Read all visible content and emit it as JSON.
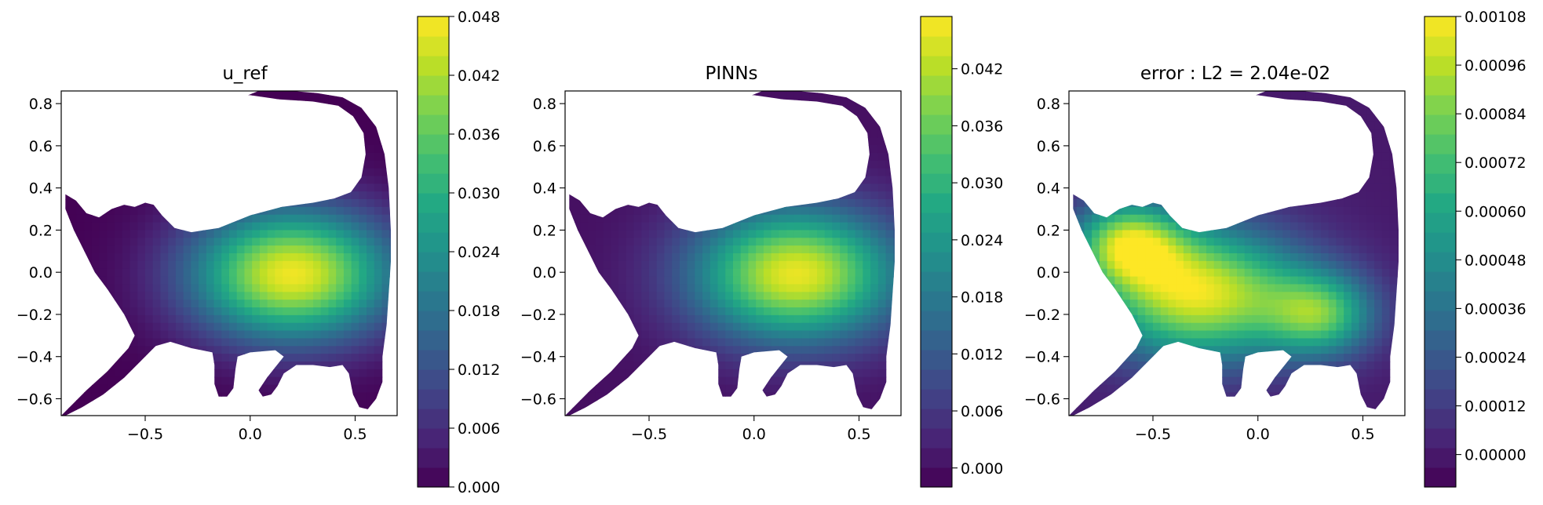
{
  "chart_data": [
    {
      "type": "heatmap",
      "title": "u_ref",
      "xlabel": "",
      "ylabel": "",
      "xlim": [
        -0.9,
        0.7
      ],
      "ylim": [
        -0.68,
        0.86
      ],
      "xticks": [
        "−0.5",
        "0.0",
        "0.5"
      ],
      "xtick_values": [
        -0.5,
        0.0,
        0.5
      ],
      "yticks": [
        "0.8",
        "0.6",
        "0.4",
        "0.2",
        "0.0",
        "−0.2",
        "−0.4",
        "−0.6"
      ],
      "ytick_values": [
        0.8,
        0.6,
        0.4,
        0.2,
        0.0,
        -0.2,
        -0.4,
        -0.6
      ],
      "colormap": "viridis",
      "colorbar": {
        "min": 0.0,
        "max": 0.048,
        "ticks": [
          "0.000",
          "0.006",
          "0.012",
          "0.018",
          "0.024",
          "0.030",
          "0.036",
          "0.042",
          "0.048"
        ],
        "tick_values": [
          0.0,
          0.006,
          0.012,
          0.018,
          0.024,
          0.03,
          0.036,
          0.042,
          0.048
        ]
      },
      "field": {
        "peaks": [
          {
            "x": 0.2,
            "y": -0.01,
            "value": 0.047
          }
        ],
        "domain": "cat-shaped region"
      },
      "grid": false
    },
    {
      "type": "heatmap",
      "title": "PINNs",
      "xlabel": "",
      "ylabel": "",
      "xlim": [
        -0.9,
        0.7
      ],
      "ylim": [
        -0.68,
        0.86
      ],
      "xticks": [
        "−0.5",
        "0.0",
        "0.5"
      ],
      "xtick_values": [
        -0.5,
        0.0,
        0.5
      ],
      "yticks": [
        "0.8",
        "0.6",
        "0.4",
        "0.2",
        "0.0",
        "−0.2",
        "−0.4",
        "−0.6"
      ],
      "ytick_values": [
        0.8,
        0.6,
        0.4,
        0.2,
        0.0,
        -0.2,
        -0.4,
        -0.6
      ],
      "colormap": "viridis",
      "colorbar": {
        "min": -0.002,
        "max": 0.0475,
        "ticks": [
          "0.000",
          "0.006",
          "0.012",
          "0.018",
          "0.024",
          "0.030",
          "0.036",
          "0.042"
        ],
        "tick_values": [
          0.0,
          0.006,
          0.012,
          0.018,
          0.024,
          0.03,
          0.036,
          0.042
        ]
      },
      "field": {
        "peaks": [
          {
            "x": 0.2,
            "y": -0.01,
            "value": 0.046
          }
        ],
        "domain": "cat-shaped region"
      },
      "grid": false
    },
    {
      "type": "heatmap",
      "title": "error : L2 = 2.04e-02",
      "xlabel": "",
      "ylabel": "",
      "xlim": [
        -0.9,
        0.7
      ],
      "ylim": [
        -0.68,
        0.86
      ],
      "xticks": [
        "−0.5",
        "0.0",
        "0.5"
      ],
      "xtick_values": [
        -0.5,
        0.0,
        0.5
      ],
      "yticks": [
        "0.8",
        "0.6",
        "0.4",
        "0.2",
        "0.0",
        "−0.2",
        "−0.4",
        "−0.6"
      ],
      "ytick_values": [
        0.8,
        0.6,
        0.4,
        0.2,
        0.0,
        -0.2,
        -0.4,
        -0.6
      ],
      "colormap": "viridis",
      "colorbar": {
        "min": -8e-05,
        "max": 0.00108,
        "ticks": [
          "0.00000",
          "0.00012",
          "0.00024",
          "0.00036",
          "0.00048",
          "0.00060",
          "0.00072",
          "0.00084",
          "0.00096",
          "0.00108"
        ],
        "tick_values": [
          0.0,
          0.00012,
          0.00024,
          0.00036,
          0.00048,
          0.0006,
          0.00072,
          0.00084,
          0.00096,
          0.00108
        ]
      },
      "field": {
        "peaks": [
          {
            "x": -0.28,
            "y": -0.1,
            "value": 0.00104
          },
          {
            "x": -0.62,
            "y": 0.14,
            "value": 0.0008
          },
          {
            "x": 0.3,
            "y": -0.2,
            "value": 0.00068
          }
        ],
        "domain": "cat-shaped region"
      },
      "grid": false
    }
  ]
}
